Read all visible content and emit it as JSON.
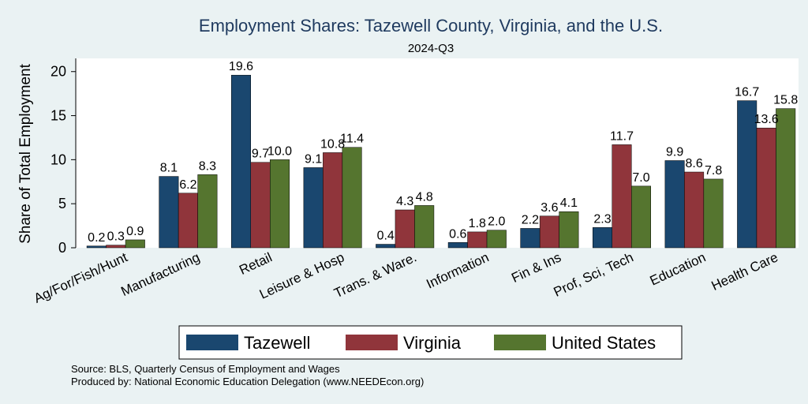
{
  "chart_data": {
    "type": "bar",
    "title": "Employment Shares: Tazewell County, Virginia, and the U.S.",
    "subtitle": "2024-Q3",
    "ylabel": "Share of Total Employment",
    "xlabel": "",
    "ylim": [
      0,
      21.5
    ],
    "yticks": [
      0,
      5,
      10,
      15,
      20
    ],
    "categories": [
      "Ag/For/Fish/Hunt",
      "Manufacturing",
      "Retail",
      "Leisure & Hosp",
      "Trans. & Ware.",
      "Information",
      "Fin & Ins",
      "Prof, Sci, Tech",
      "Education",
      "Health Care"
    ],
    "series": [
      {
        "name": "Tazewell",
        "color": "#1a476f",
        "values": [
          0.2,
          8.1,
          19.6,
          9.1,
          0.4,
          0.6,
          2.2,
          2.3,
          9.9,
          16.7
        ]
      },
      {
        "name": "Virginia",
        "color": "#90353b",
        "values": [
          0.3,
          6.2,
          9.7,
          10.8,
          4.3,
          1.8,
          3.6,
          11.7,
          8.6,
          13.6
        ]
      },
      {
        "name": "United States",
        "color": "#55752f",
        "values": [
          0.9,
          8.3,
          10.0,
          11.4,
          4.8,
          2.0,
          4.1,
          7.0,
          7.8,
          15.8
        ]
      }
    ],
    "value_labels": [
      [
        "0.2",
        "8.1",
        "19.6",
        "9.1",
        "0.4",
        "0.6",
        "2.2",
        "2.3",
        "9.9",
        "16.7"
      ],
      [
        "0.3",
        "6.2",
        "9.7",
        "10.8",
        "4.3",
        "1.8",
        "3.6",
        "11.7",
        "8.6",
        "13.6"
      ],
      [
        "0.9",
        "8.3",
        "10.0",
        "11.4",
        "4.8",
        "2.0",
        "4.1",
        "7.0",
        "7.8",
        "15.8"
      ]
    ],
    "grid": false,
    "legend_position": "bottom"
  },
  "source_lines": [
    "Source: BLS, Quarterly Census of Employment and Wages",
    "Produced by: National Economic Education Delegation (www.NEEDEcon.org)"
  ]
}
